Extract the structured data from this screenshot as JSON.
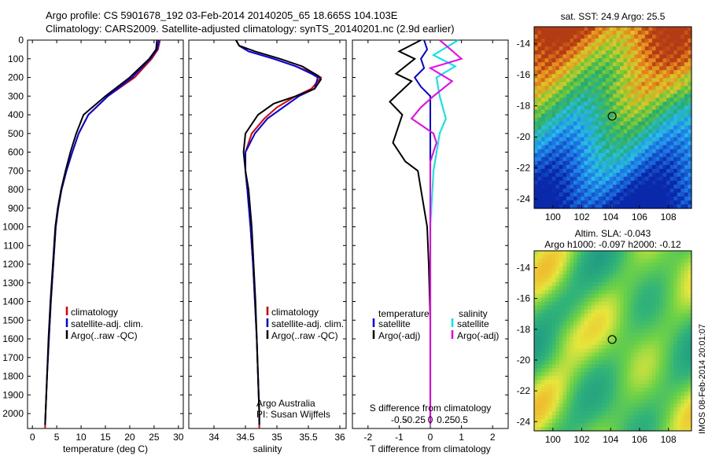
{
  "header": {
    "line1": "Argo profile: CS 5901678_192 03-Feb-2014 20140205_65 18.665S 104.103E",
    "line2": "Climatology: CARS2009. Satellite-adjusted climatology: synTS_20140201.nc (2.9d earlier)"
  },
  "colors": {
    "climatology": "#e00000",
    "satellite": "#0000ee",
    "argo": "#000000",
    "sat_salinity": "#00e5ee",
    "argo_salinity": "#ee00ee"
  },
  "panels": {
    "temperature": {
      "xlabel": "temperature (deg C)",
      "xlim": [
        -1,
        31
      ],
      "xticks": [
        "0",
        "5",
        "10",
        "15",
        "20",
        "25",
        "30"
      ],
      "xtick_values": [
        0,
        5,
        10,
        15,
        20,
        25,
        30
      ],
      "legend": [
        "climatology",
        "satellite-adj. clim.",
        "Argo(..raw -QC)"
      ]
    },
    "salinity": {
      "xlabel": "salinity",
      "xlim": [
        33.6,
        36.1
      ],
      "xticks": [
        "34",
        "34.5",
        "35",
        "35.5",
        "36"
      ],
      "xtick_values": [
        34,
        34.5,
        35,
        35.5,
        36
      ],
      "legend": [
        "climatology",
        "satellite-adj. clim.",
        "Argo(..raw -QC)"
      ],
      "note1": "Argo Australia",
      "note2": "PI: Susan Wijffels"
    },
    "difference": {
      "xlabel": "T difference from climatology",
      "xlabel_top": "S difference from climatology",
      "xlim": [
        -2.5,
        2.5
      ],
      "xticks_T": [
        "-2",
        "-1",
        "0",
        "1",
        "2"
      ],
      "xtick_values_T": [
        -2,
        -1,
        0,
        1,
        2
      ],
      "xticks_S": [
        "-0.5",
        "-0.25",
        "0",
        "0.25",
        "0.5"
      ],
      "xtick_values_S": [
        -1,
        -0.5,
        0,
        0.5,
        1
      ],
      "legend_T_title": "temperature",
      "legend_S_title": "salinity",
      "legend_T": [
        "satellite",
        "Argo(-adj)"
      ],
      "legend_S": [
        "satellite",
        "Argo(-adj)"
      ]
    },
    "depth_ticks": [
      "0",
      "100",
      "200",
      "300",
      "400",
      "500",
      "600",
      "700",
      "800",
      "900",
      "1000",
      "1100",
      "1200",
      "1300",
      "1400",
      "1500",
      "1600",
      "1700",
      "1800",
      "1900",
      "2000"
    ]
  },
  "maps": {
    "sst_title": "sat. SST: 24.9 Argo: 25.5",
    "sla_title1": "Altim. SLA: -0.043",
    "sla_title2": "Argo h1000: -0.097 h2000: -0.12",
    "xticks": [
      "100",
      "102",
      "104",
      "106",
      "108"
    ],
    "xtick_values": [
      100,
      102,
      104,
      106,
      108
    ],
    "yticks": [
      "-14",
      "-16",
      "-18",
      "-20",
      "-22",
      "-24"
    ],
    "ytick_values": [
      -14,
      -16,
      -18,
      -20,
      -22,
      -24
    ],
    "lon_range": [
      98.7,
      109.6
    ],
    "lat_range": [
      -24.6,
      -12.9
    ],
    "float_position": {
      "lon": 104.103,
      "lat": -18.665
    }
  },
  "stamp": "IMOS 08-Feb-2014 20:01:07",
  "chart_data": [
    {
      "type": "line",
      "title": "",
      "xlabel": "temperature (deg C)",
      "ylabel": "",
      "xlim": [
        -1,
        31
      ],
      "ylim": [
        2080,
        0
      ],
      "series": [
        {
          "name": "climatology",
          "points": [
            [
              26.2,
              0
            ],
            [
              25.8,
              50
            ],
            [
              24.5,
              100
            ],
            [
              21,
              200
            ],
            [
              15.5,
              300
            ],
            [
              11.5,
              400
            ],
            [
              9.5,
              500
            ],
            [
              8.2,
              600
            ],
            [
              7,
              700
            ],
            [
              6,
              800
            ],
            [
              5.3,
              900
            ],
            [
              4.8,
              1000
            ],
            [
              4.3,
              1200
            ],
            [
              3.8,
              1400
            ],
            [
              3.4,
              1600
            ],
            [
              3.0,
              1800
            ],
            [
              2.7,
              2000
            ],
            [
              2.6,
              2080
            ]
          ]
        },
        {
          "name": "satellite-adj. clim.",
          "points": [
            [
              26,
              0
            ],
            [
              25.6,
              50
            ],
            [
              24.2,
              100
            ],
            [
              20.5,
              200
            ],
            [
              15.5,
              300
            ],
            [
              11.5,
              400
            ],
            [
              9.5,
              500
            ],
            [
              8.2,
              600
            ],
            [
              7,
              700
            ],
            [
              6,
              800
            ],
            [
              5.3,
              900
            ],
            [
              4.8,
              1000
            ],
            [
              4.3,
              1200
            ],
            [
              3.8,
              1400
            ],
            [
              3.4,
              1600
            ],
            [
              3.0,
              1800
            ],
            [
              2.7,
              2000
            ],
            [
              2.6,
              2060
            ]
          ]
        },
        {
          "name": "Argo(..raw -QC)",
          "points": [
            [
              25.6,
              0
            ],
            [
              25.4,
              50
            ],
            [
              24,
              100
            ],
            [
              20,
              200
            ],
            [
              15,
              300
            ],
            [
              10.5,
              400
            ],
            [
              9,
              500
            ],
            [
              7.8,
              600
            ],
            [
              6.8,
              700
            ],
            [
              5.9,
              800
            ],
            [
              5.2,
              900
            ],
            [
              4.7,
              1000
            ],
            [
              4.2,
              1200
            ],
            [
              3.7,
              1400
            ],
            [
              3.3,
              1600
            ],
            [
              3.0,
              1800
            ],
            [
              2.7,
              2000
            ],
            [
              2.6,
              2060
            ]
          ]
        }
      ]
    },
    {
      "type": "line",
      "title": "",
      "xlabel": "salinity",
      "ylabel": "",
      "xlim": [
        33.6,
        36.1
      ],
      "ylim": [
        2080,
        0
      ],
      "series": [
        {
          "name": "climatology",
          "points": [
            [
              34.35,
              0
            ],
            [
              34.4,
              30
            ],
            [
              34.55,
              60
            ],
            [
              34.95,
              100
            ],
            [
              35.3,
              140
            ],
            [
              35.6,
              180
            ],
            [
              35.7,
              200
            ],
            [
              35.55,
              260
            ],
            [
              35.3,
              300
            ],
            [
              35.0,
              360
            ],
            [
              34.8,
              420
            ],
            [
              34.6,
              500
            ],
            [
              34.5,
              600
            ],
            [
              34.5,
              700
            ],
            [
              34.53,
              800
            ],
            [
              34.58,
              1000
            ],
            [
              34.62,
              1200
            ],
            [
              34.65,
              1400
            ],
            [
              34.68,
              1600
            ],
            [
              34.7,
              1800
            ],
            [
              34.72,
              2000
            ],
            [
              34.72,
              2080
            ]
          ]
        },
        {
          "name": "satellite-adj. clim.",
          "points": [
            [
              34.35,
              0
            ],
            [
              34.4,
              30
            ],
            [
              34.55,
              60
            ],
            [
              34.95,
              100
            ],
            [
              35.3,
              140
            ],
            [
              35.55,
              180
            ],
            [
              35.65,
              200
            ],
            [
              35.6,
              260
            ],
            [
              35.35,
              300
            ],
            [
              35.1,
              360
            ],
            [
              34.85,
              420
            ],
            [
              34.65,
              500
            ],
            [
              34.5,
              600
            ],
            [
              34.5,
              700
            ],
            [
              34.53,
              800
            ],
            [
              34.58,
              1000
            ],
            [
              34.62,
              1200
            ],
            [
              34.65,
              1400
            ],
            [
              34.68,
              1600
            ],
            [
              34.7,
              1800
            ],
            [
              34.72,
              2000
            ],
            [
              34.72,
              2060
            ]
          ]
        },
        {
          "name": "Argo(..raw -QC)",
          "points": [
            [
              34.35,
              0
            ],
            [
              34.4,
              30
            ],
            [
              34.65,
              60
            ],
            [
              35.05,
              100
            ],
            [
              35.4,
              140
            ],
            [
              35.65,
              190
            ],
            [
              35.7,
              210
            ],
            [
              35.6,
              260
            ],
            [
              35.3,
              300
            ],
            [
              34.95,
              340
            ],
            [
              34.7,
              400
            ],
            [
              34.5,
              500
            ],
            [
              34.47,
              600
            ],
            [
              34.5,
              700
            ],
            [
              34.55,
              800
            ],
            [
              34.6,
              1000
            ],
            [
              34.63,
              1200
            ],
            [
              34.66,
              1400
            ],
            [
              34.68,
              1600
            ],
            [
              34.7,
              1800
            ],
            [
              34.72,
              2000
            ],
            [
              34.72,
              2060
            ]
          ]
        }
      ]
    },
    {
      "type": "line",
      "title": "",
      "xlabel": "T difference from climatology",
      "ylabel": "",
      "xlim": [
        -2.5,
        2.5
      ],
      "ylim": [
        2080,
        0
      ],
      "series": [
        {
          "name": "satellite",
          "points": [
            [
              -0.2,
              0
            ],
            [
              -0.1,
              50
            ],
            [
              -0.3,
              100
            ],
            [
              -0.2,
              150
            ],
            [
              -0.5,
              200
            ],
            [
              -0.3,
              250
            ],
            [
              0,
              300
            ],
            [
              0,
              400
            ],
            [
              0,
              600
            ],
            [
              0,
              1000
            ],
            [
              0,
              1500
            ],
            [
              0,
              2060
            ]
          ]
        },
        {
          "name": "Argo(-adj)",
          "points": [
            [
              -0.3,
              0
            ],
            [
              -1.0,
              60
            ],
            [
              -0.5,
              100
            ],
            [
              -1.1,
              180
            ],
            [
              -0.6,
              220
            ],
            [
              -1.3,
              330
            ],
            [
              -0.9,
              400
            ],
            [
              -1.0,
              450
            ],
            [
              -1.2,
              550
            ],
            [
              -1.0,
              600
            ],
            [
              -0.8,
              650
            ],
            [
              -0.4,
              700
            ],
            [
              -0.3,
              800
            ],
            [
              -0.1,
              1000
            ],
            [
              -0.05,
              1200
            ],
            [
              0,
              1500
            ],
            [
              0,
              2060
            ]
          ]
        }
      ]
    },
    {
      "type": "line",
      "title": "",
      "xlabel": "S difference from climatology",
      "ylabel": "",
      "xlim": [
        -1.25,
        1.25
      ],
      "ylim": [
        2080,
        0
      ],
      "series": [
        {
          "name": "satellite",
          "points": [
            [
              0.45,
              0
            ],
            [
              0.05,
              80
            ],
            [
              0.4,
              140
            ],
            [
              0.1,
              200
            ],
            [
              0.15,
              300
            ],
            [
              0.2,
              360
            ],
            [
              0.25,
              420
            ],
            [
              0.15,
              500
            ],
            [
              0.05,
              700
            ],
            [
              0,
              1000
            ],
            [
              0,
              1500
            ],
            [
              0,
              2060
            ]
          ]
        },
        {
          "name": "Argo(-adj)",
          "points": [
            [
              0.15,
              0
            ],
            [
              0.5,
              100
            ],
            [
              0.0,
              150
            ],
            [
              0.35,
              220
            ],
            [
              0.05,
              300
            ],
            [
              -0.15,
              360
            ],
            [
              -0.3,
              420
            ],
            [
              0.05,
              500
            ],
            [
              0.1,
              550
            ],
            [
              0.0,
              650
            ],
            [
              0,
              800
            ],
            [
              0,
              1000
            ],
            [
              0,
              1500
            ],
            [
              0,
              2060
            ]
          ]
        }
      ]
    }
  ]
}
